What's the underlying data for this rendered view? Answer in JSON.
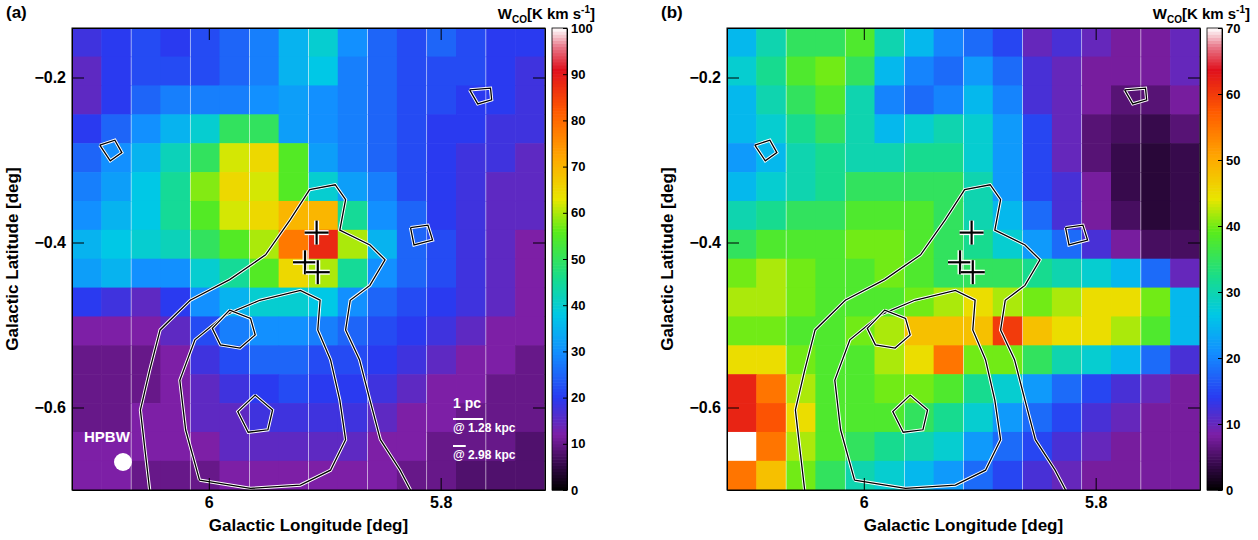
{
  "chart_data": [
    {
      "type": "heatmap",
      "panel_label": "(a)",
      "x_label": "Galactic Longitude [deg]",
      "y_label": "Galactic Latitude [deg]",
      "xlim": [
        6.118,
        5.71
      ],
      "ylim": [
        -0.7,
        -0.14
      ],
      "xticks": [
        6,
        5.8
      ],
      "yticks": [
        {
          "value": -0.2,
          "label": "−0.2"
        },
        {
          "value": -0.4,
          "label": "−0.4"
        },
        {
          "value": -0.6,
          "label": "−0.6"
        }
      ],
      "map": {
        "x": [
          6.105,
          6.08,
          6.054,
          6.029,
          6.003,
          5.978,
          5.952,
          5.927,
          5.901,
          5.876,
          5.85,
          5.825,
          5.799,
          5.774,
          5.748,
          5.723
        ],
        "y": [
          -0.1575,
          -0.1925,
          -0.2275,
          -0.2625,
          -0.2975,
          -0.3325,
          -0.3675,
          -0.4025,
          -0.4375,
          -0.4725,
          -0.5075,
          -0.5425,
          -0.5775,
          -0.6125,
          -0.6475,
          -0.6825
        ],
        "values": [
          [
            18,
            20,
            22,
            20,
            22,
            25,
            28,
            35,
            40,
            30,
            25,
            22,
            25,
            22,
            20,
            20
          ],
          [
            15,
            20,
            22,
            22,
            22,
            25,
            28,
            35,
            38,
            28,
            25,
            22,
            22,
            22,
            20,
            18
          ],
          [
            15,
            20,
            25,
            28,
            28,
            28,
            30,
            32,
            30,
            28,
            25,
            22,
            22,
            20,
            20,
            18
          ],
          [
            20,
            25,
            30,
            35,
            40,
            50,
            50,
            32,
            30,
            28,
            25,
            22,
            20,
            20,
            18,
            18
          ],
          [
            25,
            30,
            35,
            42,
            50,
            62,
            65,
            55,
            32,
            28,
            25,
            22,
            20,
            18,
            18,
            15
          ],
          [
            28,
            32,
            38,
            45,
            58,
            65,
            62,
            55,
            40,
            32,
            28,
            22,
            20,
            18,
            15,
            15
          ],
          [
            30,
            35,
            38,
            45,
            55,
            62,
            65,
            70,
            70,
            45,
            30,
            25,
            20,
            18,
            15,
            15
          ],
          [
            35,
            38,
            40,
            42,
            50,
            55,
            60,
            78,
            88,
            60,
            35,
            25,
            22,
            18,
            15,
            12
          ],
          [
            32,
            35,
            30,
            30,
            40,
            45,
            55,
            65,
            60,
            45,
            30,
            25,
            22,
            18,
            15,
            12
          ],
          [
            20,
            18,
            15,
            20,
            30,
            35,
            40,
            40,
            38,
            30,
            25,
            22,
            20,
            18,
            15,
            12
          ],
          [
            12,
            12,
            12,
            15,
            22,
            28,
            30,
            30,
            28,
            25,
            22,
            20,
            18,
            15,
            12,
            12
          ],
          [
            10,
            10,
            10,
            12,
            18,
            22,
            25,
            25,
            22,
            22,
            20,
            18,
            15,
            12,
            12,
            10
          ],
          [
            10,
            10,
            10,
            12,
            15,
            18,
            20,
            22,
            20,
            20,
            18,
            15,
            12,
            12,
            10,
            10
          ],
          [
            10,
            10,
            12,
            12,
            15,
            15,
            18,
            18,
            18,
            18,
            15,
            12,
            12,
            10,
            10,
            10
          ],
          [
            12,
            12,
            12,
            12,
            12,
            15,
            15,
            15,
            15,
            15,
            12,
            12,
            10,
            10,
            10,
            8
          ],
          [
            12,
            12,
            10,
            10,
            10,
            12,
            12,
            12,
            12,
            12,
            12,
            10,
            10,
            8,
            8,
            8
          ]
        ]
      },
      "colorbar": {
        "title": {
          "text": "W",
          "sub": "CO",
          "unit": "[K km s",
          "sup": "-1",
          "end": "]"
        },
        "range": [
          0,
          100
        ],
        "ticks": [
          0,
          10,
          20,
          30,
          40,
          50,
          60,
          70,
          80,
          90,
          100
        ]
      },
      "contours": [
        {
          "x": [
            6.051,
            6.055,
            6.059,
            6.051,
            6.042,
            6.016,
            5.982,
            5.951,
            5.93,
            5.913,
            5.891,
            5.882,
            5.887,
            5.861,
            5.848,
            5.861,
            5.878,
            5.882,
            5.87,
            5.861,
            5.852,
            5.835,
            5.826
          ],
          "y": [
            -0.7,
            -0.652,
            -0.603,
            -0.555,
            -0.506,
            -0.47,
            -0.445,
            -0.415,
            -0.373,
            -0.336,
            -0.33,
            -0.348,
            -0.385,
            -0.403,
            -0.421,
            -0.452,
            -0.47,
            -0.506,
            -0.542,
            -0.591,
            -0.639,
            -0.676,
            -0.7
          ]
        },
        {
          "x": [
            6.008,
            6.02,
            6.025,
            6.012,
            5.986,
            5.956,
            5.921,
            5.904,
            5.906,
            5.895,
            5.887,
            5.882,
            5.895,
            5.921,
            5.964,
            6.008
          ],
          "y": [
            -0.688,
            -0.627,
            -0.567,
            -0.518,
            -0.488,
            -0.47,
            -0.458,
            -0.47,
            -0.506,
            -0.542,
            -0.591,
            -0.639,
            -0.676,
            -0.694,
            -0.698,
            -0.688
          ]
        },
        {
          "x": [
            5.982,
            5.964,
            5.96,
            5.973,
            5.99,
            5.997,
            5.982
          ],
          "y": [
            -0.482,
            -0.492,
            -0.512,
            -0.528,
            -0.524,
            -0.504,
            -0.482
          ]
        },
        {
          "x": [
            5.96,
            5.945,
            5.949,
            5.966,
            5.975,
            5.96
          ],
          "y": [
            -0.585,
            -0.603,
            -0.627,
            -0.63,
            -0.605,
            -0.585
          ]
        },
        {
          "x": [
            6.094,
            6.081,
            6.075,
            6.085,
            6.094
          ],
          "y": [
            -0.282,
            -0.276,
            -0.291,
            -0.301,
            -0.282
          ]
        },
        {
          "x": [
            5.775,
            5.757,
            5.756,
            5.768,
            5.775
          ],
          "y": [
            -0.215,
            -0.213,
            -0.227,
            -0.232,
            -0.215
          ]
        },
        {
          "x": [
            5.826,
            5.811,
            5.807,
            5.823,
            5.826
          ],
          "y": [
            -0.382,
            -0.379,
            -0.397,
            -0.403,
            -0.382
          ]
        }
      ],
      "sources": {
        "x": [
          5.907,
          5.917,
          5.906
        ],
        "y": [
          -0.388,
          -0.424,
          -0.436
        ],
        "marker": "cross"
      },
      "scale_bar": {
        "label": "1 pc",
        "bars": [
          {
            "label": "@ 1.28 kpc",
            "length": 0.026
          },
          {
            "label": "@ 2.98 kpc",
            "length": 0.011
          }
        ]
      },
      "beam": {
        "label": "HPBW",
        "diameter": 0.0155
      }
    },
    {
      "type": "heatmap",
      "panel_label": "(b)",
      "x_label": "Galactic Longitude [deg]",
      "y_label": "Galactic Latitude [deg]",
      "xlim": [
        6.118,
        5.71
      ],
      "ylim": [
        -0.7,
        -0.14
      ],
      "xticks": [
        6,
        5.8
      ],
      "yticks": [
        {
          "value": -0.2,
          "label": "−0.2"
        },
        {
          "value": -0.4,
          "label": "−0.4"
        },
        {
          "value": -0.6,
          "label": "−0.6"
        }
      ],
      "map": {
        "x": [
          6.105,
          6.08,
          6.054,
          6.029,
          6.003,
          5.978,
          5.952,
          5.927,
          5.901,
          5.876,
          5.85,
          5.825,
          5.799,
          5.774,
          5.748,
          5.723
        ],
        "y": [
          -0.1575,
          -0.1925,
          -0.2275,
          -0.2625,
          -0.2975,
          -0.3325,
          -0.3675,
          -0.4025,
          -0.4375,
          -0.4725,
          -0.5075,
          -0.5425,
          -0.5775,
          -0.6125,
          -0.6475,
          -0.6825
        ],
        "values": [
          [
            25,
            30,
            35,
            35,
            38,
            30,
            25,
            20,
            18,
            15,
            10,
            12,
            10,
            8,
            8,
            10
          ],
          [
            28,
            32,
            38,
            40,
            35,
            25,
            20,
            18,
            22,
            18,
            12,
            10,
            8,
            8,
            8,
            10
          ],
          [
            25,
            30,
            35,
            38,
            30,
            20,
            18,
            20,
            25,
            20,
            12,
            10,
            8,
            6,
            6,
            8
          ],
          [
            25,
            28,
            32,
            35,
            30,
            25,
            28,
            30,
            28,
            22,
            15,
            10,
            6,
            5,
            4,
            6
          ],
          [
            22,
            25,
            30,
            32,
            30,
            30,
            32,
            32,
            28,
            22,
            15,
            10,
            6,
            4,
            3,
            4
          ],
          [
            25,
            28,
            30,
            32,
            35,
            35,
            35,
            35,
            30,
            22,
            15,
            12,
            8,
            4,
            3,
            4
          ],
          [
            30,
            32,
            35,
            35,
            38,
            38,
            38,
            35,
            30,
            25,
            18,
            12,
            8,
            5,
            3,
            4
          ],
          [
            35,
            38,
            38,
            38,
            40,
            40,
            38,
            35,
            32,
            28,
            22,
            18,
            12,
            8,
            5,
            5
          ],
          [
            40,
            42,
            40,
            38,
            38,
            40,
            38,
            35,
            35,
            35,
            32,
            30,
            28,
            25,
            18,
            10
          ],
          [
            42,
            42,
            40,
            38,
            38,
            38,
            40,
            42,
            45,
            42,
            40,
            42,
            45,
            45,
            40,
            25
          ],
          [
            40,
            40,
            38,
            38,
            40,
            42,
            48,
            48,
            48,
            60,
            48,
            45,
            45,
            42,
            38,
            25
          ],
          [
            45,
            45,
            40,
            38,
            38,
            42,
            45,
            55,
            40,
            40,
            35,
            30,
            28,
            25,
            18,
            12
          ],
          [
            62,
            55,
            42,
            38,
            38,
            40,
            40,
            38,
            32,
            28,
            22,
            18,
            15,
            12,
            10,
            8
          ],
          [
            62,
            58,
            45,
            38,
            38,
            38,
            35,
            32,
            28,
            22,
            18,
            15,
            12,
            10,
            8,
            8
          ],
          [
            70,
            55,
            42,
            38,
            35,
            32,
            30,
            28,
            22,
            18,
            15,
            12,
            10,
            8,
            8,
            8
          ],
          [
            55,
            48,
            40,
            35,
            30,
            28,
            25,
            22,
            18,
            15,
            12,
            10,
            8,
            8,
            8,
            8
          ]
        ]
      },
      "colorbar": {
        "title": {
          "text": "W",
          "sub": "CO",
          "unit": "[K km s",
          "sup": "-1",
          "end": "]"
        },
        "range": [
          0,
          70
        ],
        "ticks": [
          0,
          10,
          20,
          30,
          40,
          50,
          60,
          70
        ]
      },
      "contours": [
        {
          "x": [
            6.051,
            6.055,
            6.059,
            6.051,
            6.042,
            6.016,
            5.982,
            5.951,
            5.93,
            5.913,
            5.891,
            5.882,
            5.887,
            5.861,
            5.848,
            5.861,
            5.878,
            5.882,
            5.87,
            5.861,
            5.852,
            5.835,
            5.826
          ],
          "y": [
            -0.7,
            -0.652,
            -0.603,
            -0.555,
            -0.506,
            -0.47,
            -0.445,
            -0.415,
            -0.373,
            -0.336,
            -0.33,
            -0.348,
            -0.385,
            -0.403,
            -0.421,
            -0.452,
            -0.47,
            -0.506,
            -0.542,
            -0.591,
            -0.639,
            -0.676,
            -0.7
          ]
        },
        {
          "x": [
            6.008,
            6.02,
            6.025,
            6.012,
            5.986,
            5.956,
            5.921,
            5.904,
            5.906,
            5.895,
            5.887,
            5.882,
            5.895,
            5.921,
            5.964,
            6.008
          ],
          "y": [
            -0.688,
            -0.627,
            -0.567,
            -0.518,
            -0.488,
            -0.47,
            -0.458,
            -0.47,
            -0.506,
            -0.542,
            -0.591,
            -0.639,
            -0.676,
            -0.694,
            -0.698,
            -0.688
          ]
        },
        {
          "x": [
            5.982,
            5.964,
            5.96,
            5.973,
            5.99,
            5.997,
            5.982
          ],
          "y": [
            -0.482,
            -0.492,
            -0.512,
            -0.528,
            -0.524,
            -0.504,
            -0.482
          ]
        },
        {
          "x": [
            5.96,
            5.945,
            5.949,
            5.966,
            5.975,
            5.96
          ],
          "y": [
            -0.585,
            -0.603,
            -0.627,
            -0.63,
            -0.605,
            -0.585
          ]
        },
        {
          "x": [
            6.094,
            6.081,
            6.075,
            6.085,
            6.094
          ],
          "y": [
            -0.282,
            -0.276,
            -0.291,
            -0.301,
            -0.282
          ]
        },
        {
          "x": [
            5.775,
            5.757,
            5.756,
            5.768,
            5.775
          ],
          "y": [
            -0.215,
            -0.213,
            -0.227,
            -0.232,
            -0.215
          ]
        },
        {
          "x": [
            5.826,
            5.811,
            5.807,
            5.823,
            5.826
          ],
          "y": [
            -0.382,
            -0.379,
            -0.397,
            -0.403,
            -0.382
          ]
        }
      ],
      "sources": {
        "x": [
          5.907,
          5.917,
          5.906
        ],
        "y": [
          -0.388,
          -0.424,
          -0.436
        ],
        "marker": "cross"
      }
    }
  ]
}
